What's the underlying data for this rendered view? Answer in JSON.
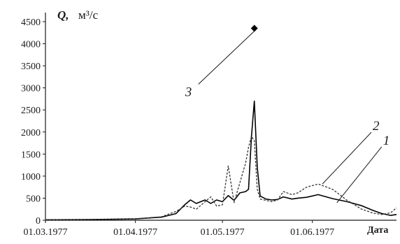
{
  "chart_data": {
    "type": "line",
    "y_title": {
      "symbol": "Q,",
      "unit": "м³/с"
    },
    "xlabel": "Дата",
    "ylim": [
      0,
      4500
    ],
    "y_ticks": [
      0,
      500,
      1000,
      1500,
      2000,
      2500,
      3000,
      3500,
      4000,
      4500
    ],
    "y_tick_labels": [
      "0",
      "500",
      "1000",
      "1500",
      "2000",
      "2500",
      "3000",
      "3500",
      "4000",
      "4500"
    ],
    "x_ticks": [
      "1977-03-01",
      "1977-04-01",
      "1977-05-01",
      "1977-06-01"
    ],
    "x_tick_labels": [
      "01.03.1977",
      "01.04.1977",
      "01.05.1977",
      "01.06.1977"
    ],
    "xlim": [
      "1977-03-01",
      "1977-06-30"
    ],
    "grid": false,
    "legend": "none",
    "series": [
      {
        "callout": "1",
        "style": "solid",
        "color": "#000000",
        "x": [
          "1977-03-01",
          "1977-03-15",
          "1977-04-01",
          "1977-04-10",
          "1977-04-15",
          "1977-04-18",
          "1977-04-20",
          "1977-04-22",
          "1977-04-25",
          "1977-04-27",
          "1977-04-29",
          "1977-05-01",
          "1977-05-03",
          "1977-05-05",
          "1977-05-07",
          "1977-05-09",
          "1977-05-10",
          "1977-05-11",
          "1977-05-12",
          "1977-05-13",
          "1977-05-14",
          "1977-05-16",
          "1977-05-18",
          "1977-05-20",
          "1977-05-22",
          "1977-05-25",
          "1977-05-27",
          "1977-05-30",
          "1977-06-03",
          "1977-06-08",
          "1977-06-13",
          "1977-06-18",
          "1977-06-22",
          "1977-06-25",
          "1977-06-28",
          "1977-06-30"
        ],
        "y": [
          10,
          15,
          30,
          70,
          150,
          350,
          460,
          380,
          460,
          380,
          460,
          420,
          560,
          450,
          620,
          650,
          700,
          1900,
          2700,
          1200,
          550,
          480,
          460,
          470,
          530,
          480,
          500,
          520,
          580,
          490,
          420,
          330,
          220,
          150,
          110,
          130
        ]
      },
      {
        "callout": "2",
        "style": "dashed",
        "color": "#333333",
        "x": [
          "1977-03-01",
          "1977-03-15",
          "1977-04-01",
          "1977-04-10",
          "1977-04-15",
          "1977-04-18",
          "1977-04-20",
          "1977-04-22",
          "1977-04-25",
          "1977-04-27",
          "1977-04-29",
          "1977-05-01",
          "1977-05-03",
          "1977-05-05",
          "1977-05-07",
          "1977-05-09",
          "1977-05-10",
          "1977-05-11",
          "1977-05-12",
          "1977-05-13",
          "1977-05-14",
          "1977-05-16",
          "1977-05-18",
          "1977-05-20",
          "1977-05-22",
          "1977-05-25",
          "1977-05-27",
          "1977-05-30",
          "1977-06-03",
          "1977-06-08",
          "1977-06-13",
          "1977-06-18",
          "1977-06-22",
          "1977-06-25",
          "1977-06-28",
          "1977-06-30"
        ],
        "y": [
          10,
          15,
          30,
          80,
          200,
          320,
          300,
          250,
          420,
          530,
          320,
          350,
          1230,
          400,
          850,
          1300,
          1650,
          1900,
          1800,
          700,
          480,
          450,
          420,
          460,
          650,
          580,
          620,
          750,
          820,
          700,
          450,
          250,
          160,
          130,
          170,
          280
        ]
      }
    ],
    "point": {
      "callout": "3",
      "x": "1977-05-12",
      "y": 4350,
      "marker": "diamond"
    }
  }
}
